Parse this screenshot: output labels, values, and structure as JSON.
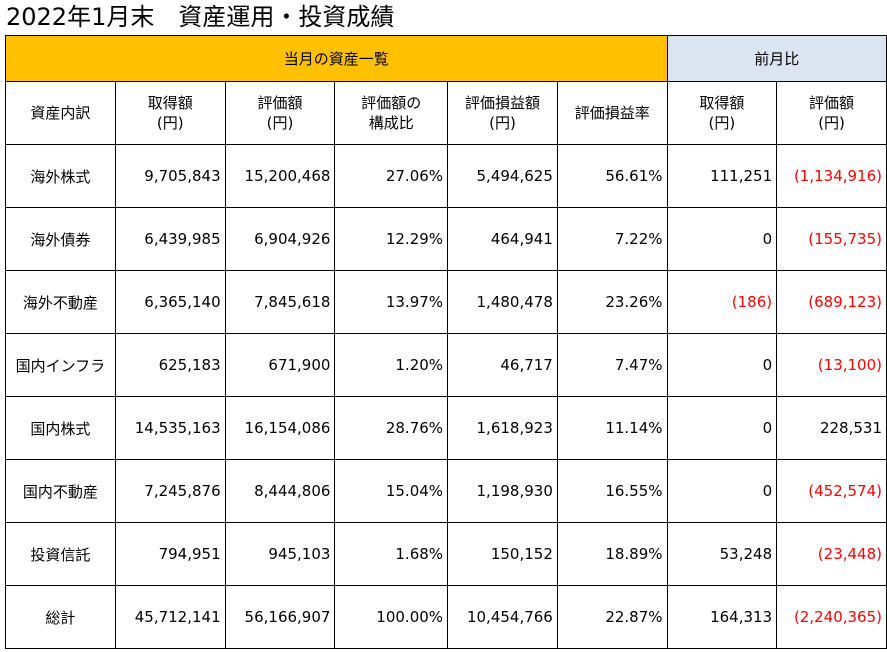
{
  "title": "2022年1月末　資産運用・投資成績",
  "sections": {
    "current": "当月の資産一覧",
    "previous": "前月比"
  },
  "colors": {
    "current_band": "#ffc000",
    "previous_band": "#dbe5f1",
    "negative": "#ff0000"
  },
  "headers": [
    [
      "資産内訳"
    ],
    [
      "取得額",
      "(円)"
    ],
    [
      "評価額",
      "(円)"
    ],
    [
      "評価額の",
      "構成比"
    ],
    [
      "評価損益額",
      "(円)"
    ],
    [
      "評価損益率"
    ],
    [
      "取得額",
      "(円)"
    ],
    [
      "評価額",
      "(円)"
    ]
  ],
  "rows": [
    [
      "海外株式",
      "9,705,843",
      "15,200,468",
      "27.06%",
      "5,494,625",
      "56.61%",
      "111,251",
      "(1,134,916)"
    ],
    [
      "海外債券",
      "6,439,985",
      "6,904,926",
      "12.29%",
      "464,941",
      "7.22%",
      "0",
      "(155,735)"
    ],
    [
      "海外不動産",
      "6,365,140",
      "7,845,618",
      "13.97%",
      "1,480,478",
      "23.26%",
      "(186)",
      "(689,123)"
    ],
    [
      "国内インフラ",
      "625,183",
      "671,900",
      "1.20%",
      "46,717",
      "7.47%",
      "0",
      "(13,100)"
    ],
    [
      "国内株式",
      "14,535,163",
      "16,154,086",
      "28.76%",
      "1,618,923",
      "11.14%",
      "0",
      "228,531"
    ],
    [
      "国内不動産",
      "7,245,876",
      "8,444,806",
      "15.04%",
      "1,198,930",
      "16.55%",
      "0",
      "(452,574)"
    ],
    [
      "投資信託",
      "794,951",
      "945,103",
      "1.68%",
      "150,152",
      "18.89%",
      "53,248",
      "(23,448)"
    ],
    [
      "総計",
      "45,712,141",
      "56,166,907",
      "100.00%",
      "10,454,766",
      "22.87%",
      "164,313",
      "(2,240,365)"
    ]
  ]
}
